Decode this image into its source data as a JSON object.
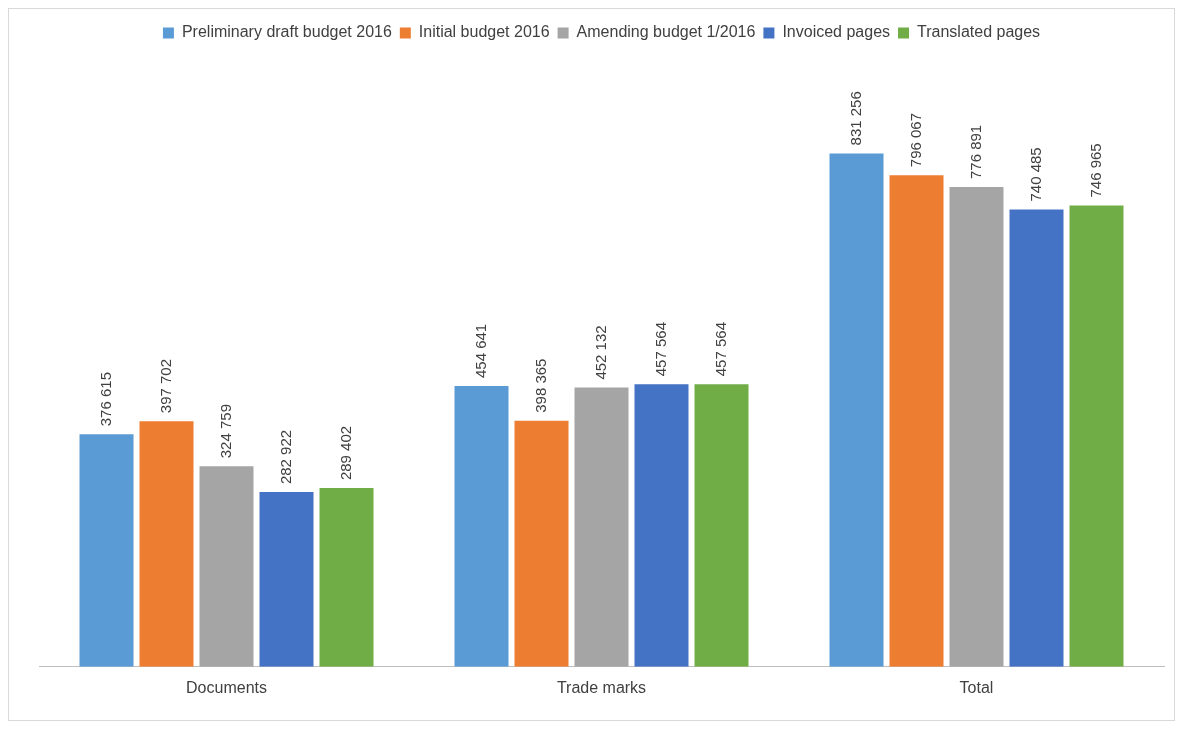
{
  "chart_data": {
    "type": "bar",
    "categories": [
      "Documents",
      "Trade marks",
      "Total"
    ],
    "legend": "top",
    "grid": false,
    "series": [
      {
        "name": "Preliminary draft budget 2016",
        "color": "#5b9bd5",
        "values": [
          376615,
          454641,
          831256
        ],
        "value_labels": [
          "376 615",
          "454 641",
          "831 256"
        ]
      },
      {
        "name": "Initial budget 2016",
        "color": "#ed7d31",
        "values": [
          397702,
          398365,
          796067
        ],
        "value_labels": [
          "397 702",
          "398 365",
          "796 067"
        ]
      },
      {
        "name": "Amending budget 1/2016",
        "color": "#a5a5a5",
        "values": [
          324759,
          452132,
          776891
        ],
        "value_labels": [
          "324 759",
          "452 132",
          "776 891"
        ]
      },
      {
        "name": "Invoiced pages",
        "color": "#4472c4",
        "values": [
          282922,
          457564,
          740485
        ],
        "value_labels": [
          "282 922",
          "457 564",
          "740 485"
        ]
      },
      {
        "name": "Translated pages",
        "color": "#70ad47",
        "values": [
          289402,
          457564,
          746965
        ],
        "value_labels": [
          "289 402",
          "457 564",
          "746 965"
        ]
      }
    ]
  }
}
